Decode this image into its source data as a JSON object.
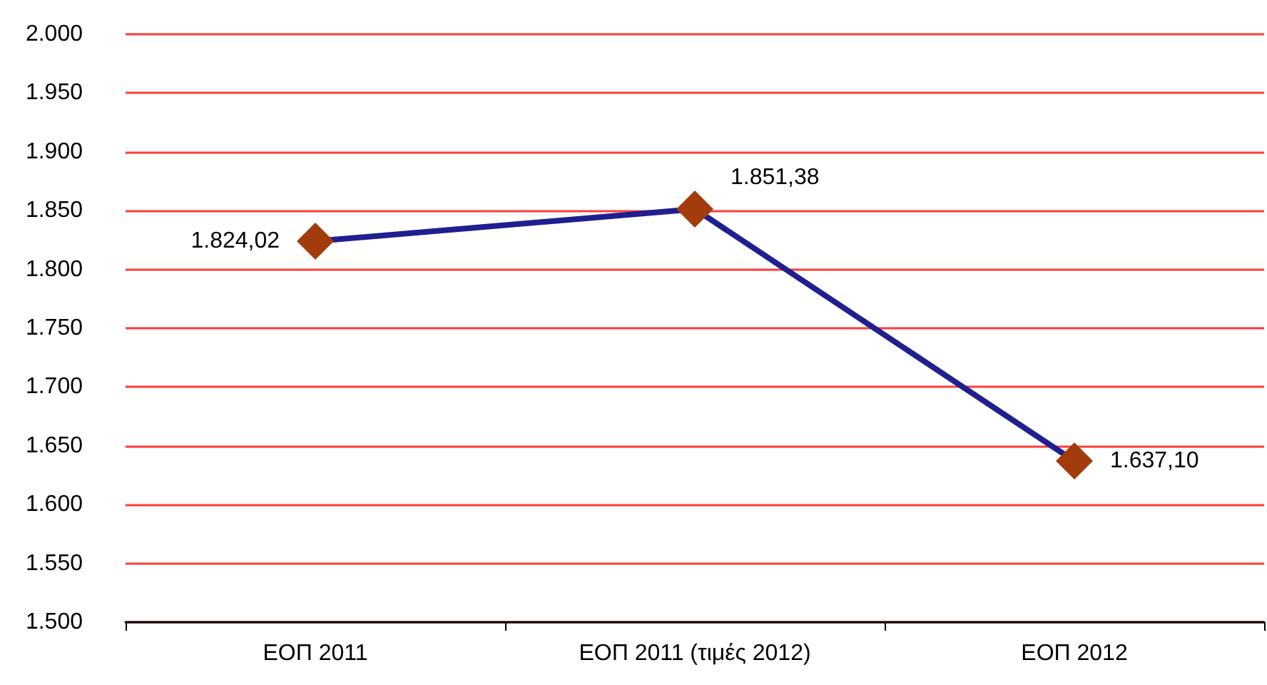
{
  "chart_data": {
    "type": "line",
    "categories": [
      "ΕΟΠ 2011",
      "ΕΟΠ 2011 (τιμές 2012)",
      "ΕΟΠ 2012"
    ],
    "series": [
      {
        "color": "#1f1f8f",
        "values": [
          1824.02,
          1851.38,
          1637.1
        ],
        "value_labels": [
          "1.824,02",
          "1.851,38",
          "1.637,10"
        ],
        "colors": [
          "#a33c0c",
          "#a33c0c",
          "#a33c0c"
        ]
      }
    ],
    "marker": "diamond",
    "line_style": "solid",
    "grid": "y",
    "ylim": [
      1500,
      2000
    ],
    "yticks": [
      {
        "value": 1500,
        "label": "1.500"
      },
      {
        "value": 1550,
        "label": "1.550"
      },
      {
        "value": 1600,
        "label": "1.600"
      },
      {
        "value": 1650,
        "label": "1.650"
      },
      {
        "value": 1700,
        "label": "1.700"
      },
      {
        "value": 1750,
        "label": "1.750"
      },
      {
        "value": 1800,
        "label": "1.800"
      },
      {
        "value": 1850,
        "label": "1.850"
      },
      {
        "value": 1900,
        "label": "1.900"
      },
      {
        "value": 1950,
        "label": "1.950"
      },
      {
        "value": 2000,
        "label": "2.000"
      }
    ]
  }
}
